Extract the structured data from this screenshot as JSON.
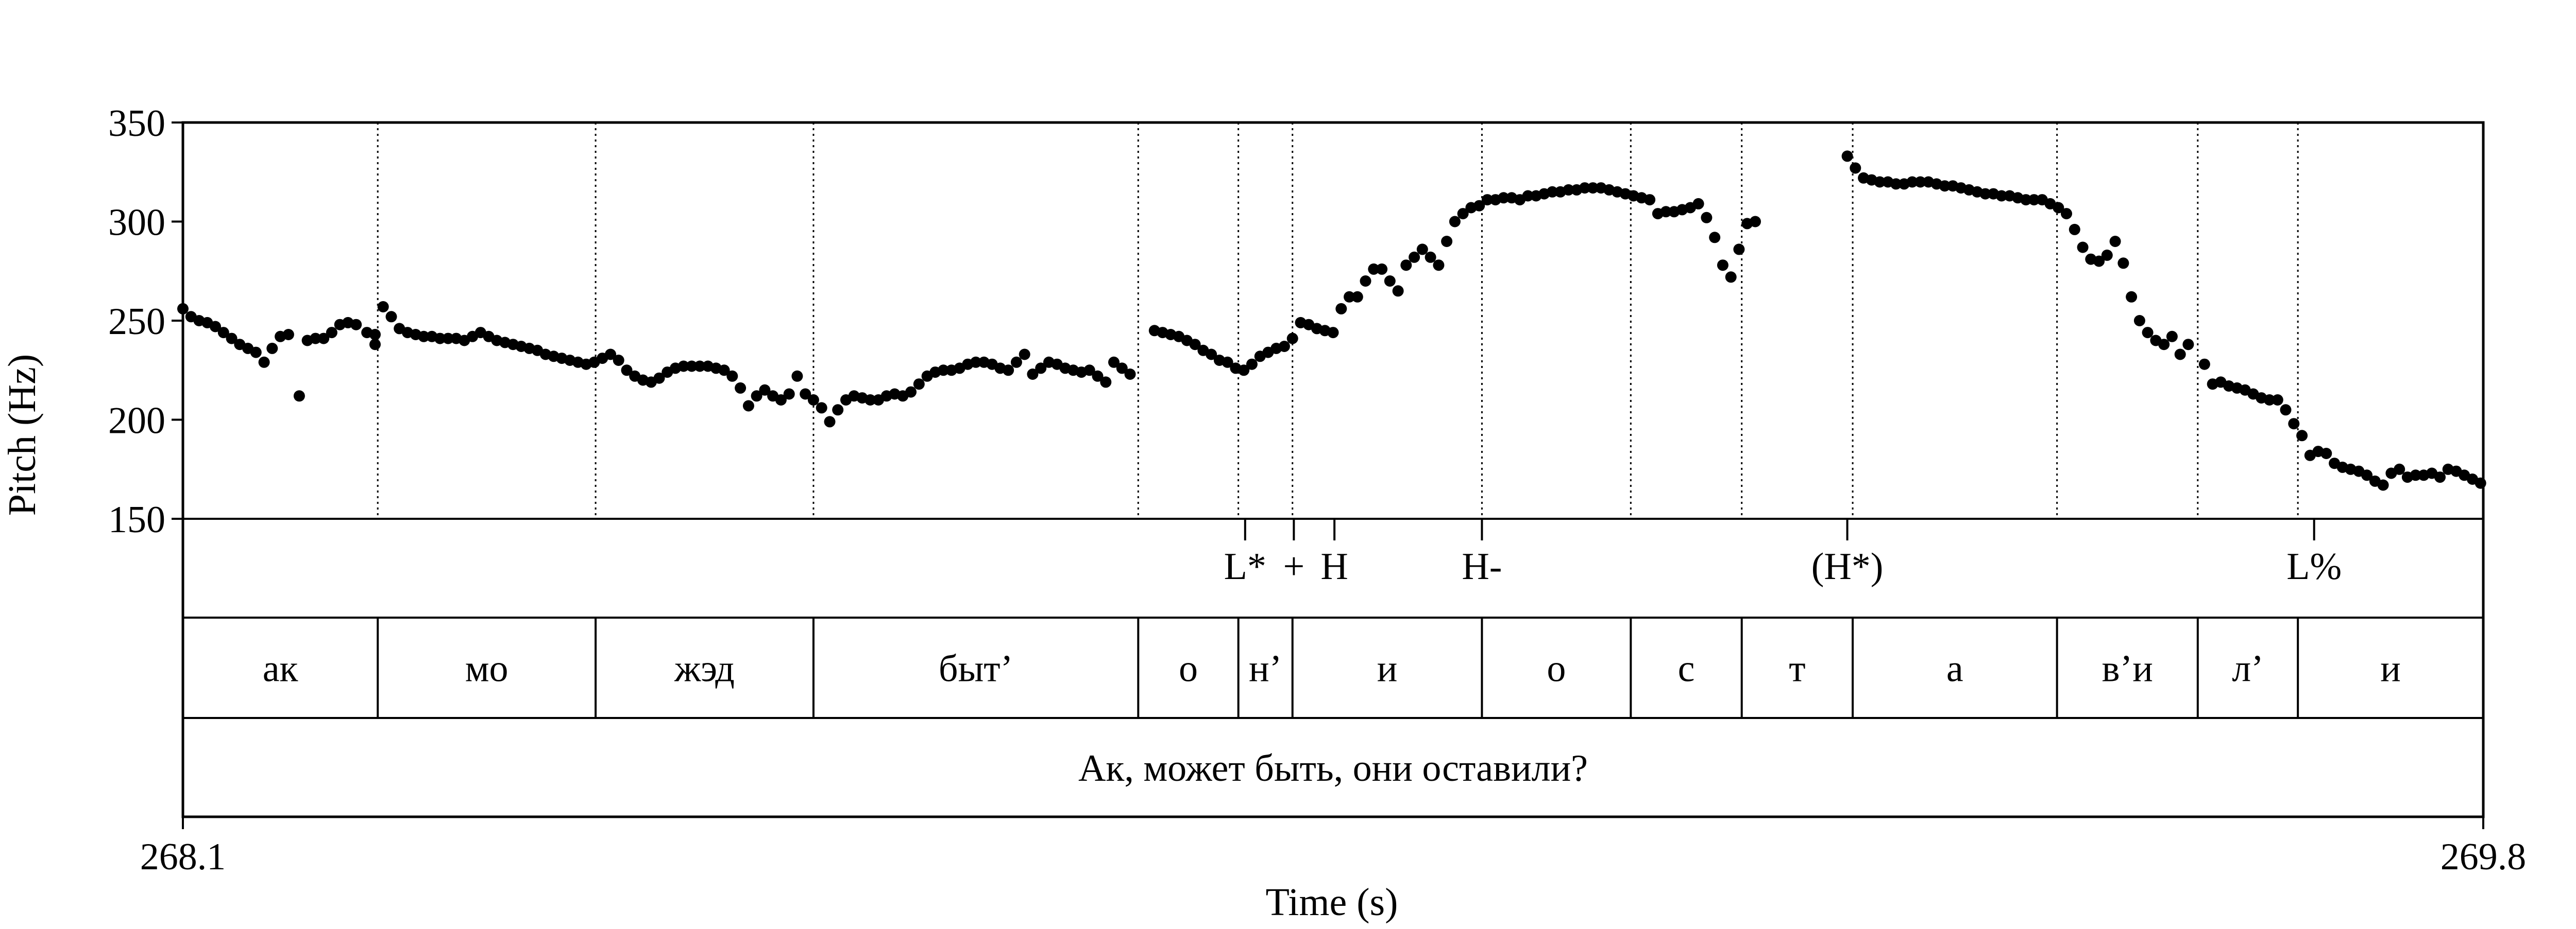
{
  "chart_data": {
    "type": "scatter",
    "xlabel": "Time (s)",
    "ylabel": "Pitch (Hz)",
    "xlim": [
      268.1,
      269.8
    ],
    "ylim": [
      150,
      350
    ],
    "x_tick_labels": [
      "268.1",
      "269.8"
    ],
    "y_ticks": [
      150,
      200,
      250,
      300,
      350
    ],
    "grid": false,
    "marker_color": "#000000",
    "series": [
      {
        "values": [
          [
            268.1,
            256
          ],
          [
            268.106,
            252
          ],
          [
            268.112,
            250
          ],
          [
            268.118,
            249
          ],
          [
            268.124,
            247
          ],
          [
            268.13,
            244
          ],
          [
            268.136,
            241
          ],
          [
            268.142,
            238
          ],
          [
            268.148,
            236
          ],
          [
            268.154,
            234
          ],
          [
            268.16,
            229
          ],
          [
            268.166,
            236
          ],
          [
            268.172,
            242
          ],
          [
            268.178,
            243
          ],
          [
            268.186,
            212
          ],
          [
            268.192,
            240
          ],
          [
            268.198,
            241
          ],
          [
            268.204,
            241
          ],
          [
            268.21,
            244
          ],
          [
            268.216,
            248
          ],
          [
            268.222,
            249
          ],
          [
            268.228,
            248
          ],
          [
            268.236,
            244
          ],
          [
            268.242,
            243
          ],
          [
            268.242,
            238
          ],
          [
            268.248,
            257
          ],
          [
            268.254,
            252
          ],
          [
            268.26,
            246
          ],
          [
            268.266,
            244
          ],
          [
            268.272,
            243
          ],
          [
            268.278,
            242
          ],
          [
            268.284,
            242
          ],
          [
            268.29,
            241
          ],
          [
            268.296,
            241
          ],
          [
            268.302,
            241
          ],
          [
            268.308,
            240
          ],
          [
            268.314,
            242
          ],
          [
            268.32,
            244
          ],
          [
            268.326,
            242
          ],
          [
            268.332,
            240
          ],
          [
            268.338,
            239
          ],
          [
            268.344,
            238
          ],
          [
            268.35,
            237
          ],
          [
            268.356,
            236
          ],
          [
            268.362,
            235
          ],
          [
            268.368,
            233
          ],
          [
            268.374,
            232
          ],
          [
            268.38,
            231
          ],
          [
            268.386,
            230
          ],
          [
            268.392,
            229
          ],
          [
            268.398,
            228
          ],
          [
            268.404,
            229
          ],
          [
            268.41,
            231
          ],
          [
            268.416,
            233
          ],
          [
            268.422,
            230
          ],
          [
            268.428,
            225
          ],
          [
            268.434,
            222
          ],
          [
            268.44,
            220
          ],
          [
            268.446,
            219
          ],
          [
            268.452,
            221
          ],
          [
            268.458,
            224
          ],
          [
            268.464,
            226
          ],
          [
            268.47,
            227
          ],
          [
            268.476,
            227
          ],
          [
            268.482,
            227
          ],
          [
            268.488,
            227
          ],
          [
            268.494,
            226
          ],
          [
            268.5,
            225
          ],
          [
            268.506,
            222
          ],
          [
            268.512,
            216
          ],
          [
            268.518,
            207
          ],
          [
            268.524,
            212
          ],
          [
            268.53,
            215
          ],
          [
            268.536,
            212
          ],
          [
            268.542,
            210
          ],
          [
            268.548,
            213
          ],
          [
            268.554,
            222
          ],
          [
            268.56,
            213
          ],
          [
            268.566,
            210
          ],
          [
            268.572,
            206
          ],
          [
            268.578,
            199
          ],
          [
            268.584,
            205
          ],
          [
            268.59,
            210
          ],
          [
            268.596,
            212
          ],
          [
            268.602,
            211
          ],
          [
            268.608,
            210
          ],
          [
            268.614,
            210
          ],
          [
            268.62,
            212
          ],
          [
            268.626,
            213
          ],
          [
            268.632,
            212
          ],
          [
            268.638,
            214
          ],
          [
            268.644,
            218
          ],
          [
            268.65,
            222
          ],
          [
            268.656,
            224
          ],
          [
            268.662,
            225
          ],
          [
            268.668,
            225
          ],
          [
            268.674,
            226
          ],
          [
            268.68,
            228
          ],
          [
            268.686,
            229
          ],
          [
            268.692,
            229
          ],
          [
            268.698,
            228
          ],
          [
            268.704,
            226
          ],
          [
            268.71,
            225
          ],
          [
            268.716,
            229
          ],
          [
            268.722,
            233
          ],
          [
            268.728,
            223
          ],
          [
            268.734,
            226
          ],
          [
            268.74,
            229
          ],
          [
            268.746,
            228
          ],
          [
            268.752,
            226
          ],
          [
            268.758,
            225
          ],
          [
            268.764,
            224
          ],
          [
            268.77,
            225
          ],
          [
            268.776,
            222
          ],
          [
            268.782,
            219
          ],
          [
            268.788,
            229
          ],
          [
            268.794,
            226
          ],
          [
            268.8,
            223
          ],
          [
            268.818,
            245
          ],
          [
            268.824,
            244
          ],
          [
            268.83,
            243
          ],
          [
            268.836,
            242
          ],
          [
            268.842,
            240
          ],
          [
            268.848,
            238
          ],
          [
            268.854,
            235
          ],
          [
            268.86,
            233
          ],
          [
            268.866,
            230
          ],
          [
            268.872,
            229
          ],
          [
            268.878,
            226
          ],
          [
            268.884,
            225
          ],
          [
            268.89,
            228
          ],
          [
            268.896,
            232
          ],
          [
            268.902,
            234
          ],
          [
            268.908,
            236
          ],
          [
            268.914,
            237
          ],
          [
            268.92,
            241
          ],
          [
            268.926,
            249
          ],
          [
            268.932,
            248
          ],
          [
            268.938,
            246
          ],
          [
            268.944,
            245
          ],
          [
            268.95,
            244
          ],
          [
            268.956,
            256
          ],
          [
            268.962,
            262
          ],
          [
            268.968,
            262
          ],
          [
            268.974,
            270
          ],
          [
            268.98,
            276
          ],
          [
            268.986,
            276
          ],
          [
            268.992,
            270
          ],
          [
            268.998,
            265
          ],
          [
            269.004,
            278
          ],
          [
            269.01,
            282
          ],
          [
            269.016,
            286
          ],
          [
            269.022,
            282
          ],
          [
            269.028,
            278
          ],
          [
            269.034,
            290
          ],
          [
            269.04,
            300
          ],
          [
            269.046,
            304
          ],
          [
            269.052,
            307
          ],
          [
            269.058,
            308
          ],
          [
            269.064,
            311
          ],
          [
            269.07,
            311
          ],
          [
            269.076,
            312
          ],
          [
            269.082,
            312
          ],
          [
            269.088,
            311
          ],
          [
            269.094,
            313
          ],
          [
            269.1,
            313
          ],
          [
            269.106,
            314
          ],
          [
            269.112,
            315
          ],
          [
            269.118,
            315
          ],
          [
            269.124,
            316
          ],
          [
            269.13,
            316
          ],
          [
            269.136,
            317
          ],
          [
            269.142,
            317
          ],
          [
            269.148,
            317
          ],
          [
            269.154,
            316
          ],
          [
            269.16,
            315
          ],
          [
            269.166,
            314
          ],
          [
            269.172,
            313
          ],
          [
            269.178,
            312
          ],
          [
            269.184,
            311
          ],
          [
            269.19,
            304
          ],
          [
            269.196,
            305
          ],
          [
            269.202,
            305
          ],
          [
            269.208,
            306
          ],
          [
            269.214,
            307
          ],
          [
            269.22,
            309
          ],
          [
            269.226,
            302
          ],
          [
            269.232,
            292
          ],
          [
            269.238,
            278
          ],
          [
            269.244,
            272
          ],
          [
            269.25,
            286
          ],
          [
            269.256,
            299
          ],
          [
            269.262,
            300
          ],
          [
            269.33,
            333
          ],
          [
            269.336,
            327
          ],
          [
            269.342,
            322
          ],
          [
            269.348,
            321
          ],
          [
            269.354,
            320
          ],
          [
            269.36,
            320
          ],
          [
            269.366,
            319
          ],
          [
            269.372,
            319
          ],
          [
            269.378,
            320
          ],
          [
            269.384,
            320
          ],
          [
            269.39,
            320
          ],
          [
            269.396,
            319
          ],
          [
            269.402,
            318
          ],
          [
            269.408,
            318
          ],
          [
            269.414,
            317
          ],
          [
            269.42,
            316
          ],
          [
            269.426,
            315
          ],
          [
            269.432,
            314
          ],
          [
            269.438,
            314
          ],
          [
            269.444,
            313
          ],
          [
            269.45,
            313
          ],
          [
            269.456,
            312
          ],
          [
            269.462,
            311
          ],
          [
            269.468,
            311
          ],
          [
            269.474,
            311
          ],
          [
            269.48,
            309
          ],
          [
            269.486,
            307
          ],
          [
            269.492,
            304
          ],
          [
            269.498,
            296
          ],
          [
            269.504,
            287
          ],
          [
            269.51,
            281
          ],
          [
            269.516,
            280
          ],
          [
            269.522,
            283
          ],
          [
            269.528,
            290
          ],
          [
            269.534,
            279
          ],
          [
            269.54,
            262
          ],
          [
            269.546,
            250
          ],
          [
            269.552,
            244
          ],
          [
            269.558,
            240
          ],
          [
            269.564,
            238
          ],
          [
            269.57,
            242
          ],
          [
            269.576,
            233
          ],
          [
            269.582,
            238
          ],
          [
            269.594,
            228
          ],
          [
            269.6,
            218
          ],
          [
            269.606,
            219
          ],
          [
            269.612,
            217
          ],
          [
            269.618,
            216
          ],
          [
            269.624,
            215
          ],
          [
            269.63,
            213
          ],
          [
            269.636,
            211
          ],
          [
            269.642,
            210
          ],
          [
            269.648,
            210
          ],
          [
            269.654,
            205
          ],
          [
            269.66,
            198
          ],
          [
            269.666,
            192
          ],
          [
            269.672,
            182
          ],
          [
            269.678,
            184
          ],
          [
            269.684,
            183
          ],
          [
            269.69,
            178
          ],
          [
            269.696,
            176
          ],
          [
            269.702,
            175
          ],
          [
            269.708,
            174
          ],
          [
            269.714,
            172
          ],
          [
            269.72,
            169
          ],
          [
            269.726,
            167
          ],
          [
            269.732,
            173
          ],
          [
            269.738,
            175
          ],
          [
            269.744,
            171
          ],
          [
            269.75,
            172
          ],
          [
            269.756,
            172
          ],
          [
            269.762,
            173
          ],
          [
            269.768,
            171
          ],
          [
            269.774,
            175
          ],
          [
            269.78,
            174
          ],
          [
            269.786,
            172
          ],
          [
            269.792,
            170
          ],
          [
            269.798,
            168
          ]
        ]
      }
    ],
    "tiers": [
      {
        "name": "tones",
        "points": [
          {
            "t": 268.885,
            "label": "L*"
          },
          {
            "t": 268.921,
            "label": "+"
          },
          {
            "t": 268.951,
            "label": "H"
          },
          {
            "t": 269.06,
            "label": "H-"
          },
          {
            "t": 269.33,
            "label": "(H*)"
          },
          {
            "t": 269.675,
            "label": "L%"
          }
        ]
      },
      {
        "name": "syllables",
        "intervals": [
          {
            "start": 268.1,
            "end": 268.244,
            "label": "ак"
          },
          {
            "start": 268.244,
            "end": 268.405,
            "label": "мо"
          },
          {
            "start": 268.405,
            "end": 268.566,
            "label": "жэд"
          },
          {
            "start": 268.566,
            "end": 268.806,
            "label": "быт’"
          },
          {
            "start": 268.806,
            "end": 268.88,
            "label": "о"
          },
          {
            "start": 268.88,
            "end": 268.92,
            "label": "н’"
          },
          {
            "start": 268.92,
            "end": 269.06,
            "label": "и"
          },
          {
            "start": 269.06,
            "end": 269.17,
            "label": "о"
          },
          {
            "start": 269.17,
            "end": 269.252,
            "label": "с"
          },
          {
            "start": 269.252,
            "end": 269.334,
            "label": "т"
          },
          {
            "start": 269.334,
            "end": 269.485,
            "label": "а"
          },
          {
            "start": 269.485,
            "end": 269.589,
            "label": "в’и"
          },
          {
            "start": 269.589,
            "end": 269.663,
            "label": "л’"
          },
          {
            "start": 269.663,
            "end": 269.8,
            "label": "и"
          }
        ]
      },
      {
        "name": "utterance",
        "intervals": [
          {
            "start": 268.1,
            "end": 269.8,
            "label": "Ак, может быть, они оставили?"
          }
        ]
      }
    ],
    "syllable_boundaries": [
      268.244,
      268.405,
      268.566,
      268.806,
      268.88,
      268.92,
      269.06,
      269.17,
      269.252,
      269.334,
      269.485,
      269.589,
      269.663
    ]
  }
}
